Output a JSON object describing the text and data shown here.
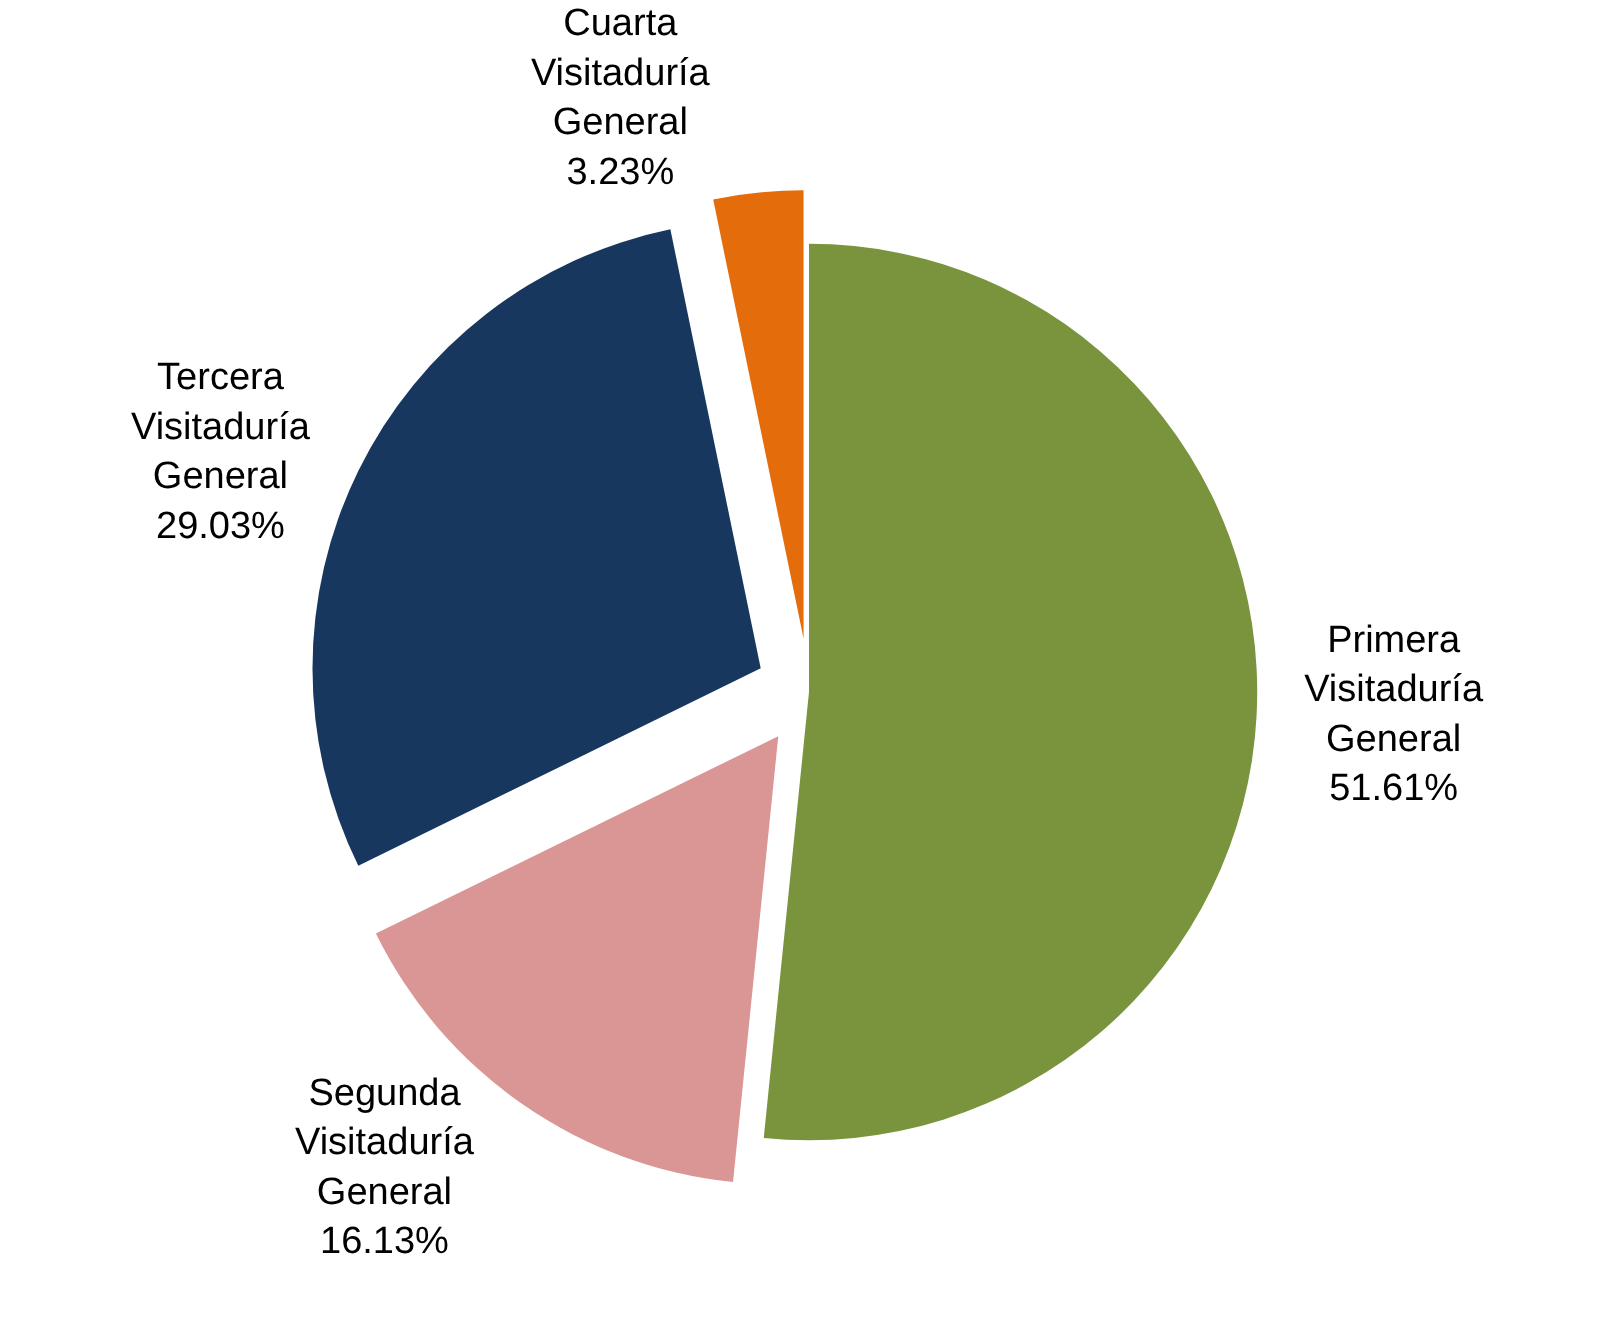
{
  "chart_data": {
    "type": "pie",
    "categories": [
      "Primera Visitaduría General",
      "Segunda Visitaduría General",
      "Tercera Visitaduría General",
      "Cuarta Visitaduría General"
    ],
    "values": [
      51.61,
      16.13,
      29.03,
      3.23
    ],
    "value_labels": [
      "51.61%",
      "16.13%",
      "29.03%",
      "3.23%"
    ],
    "colors": [
      "#7a943e",
      "#d99694",
      "#17375e",
      "#e46c0a"
    ],
    "legend": false
  }
}
